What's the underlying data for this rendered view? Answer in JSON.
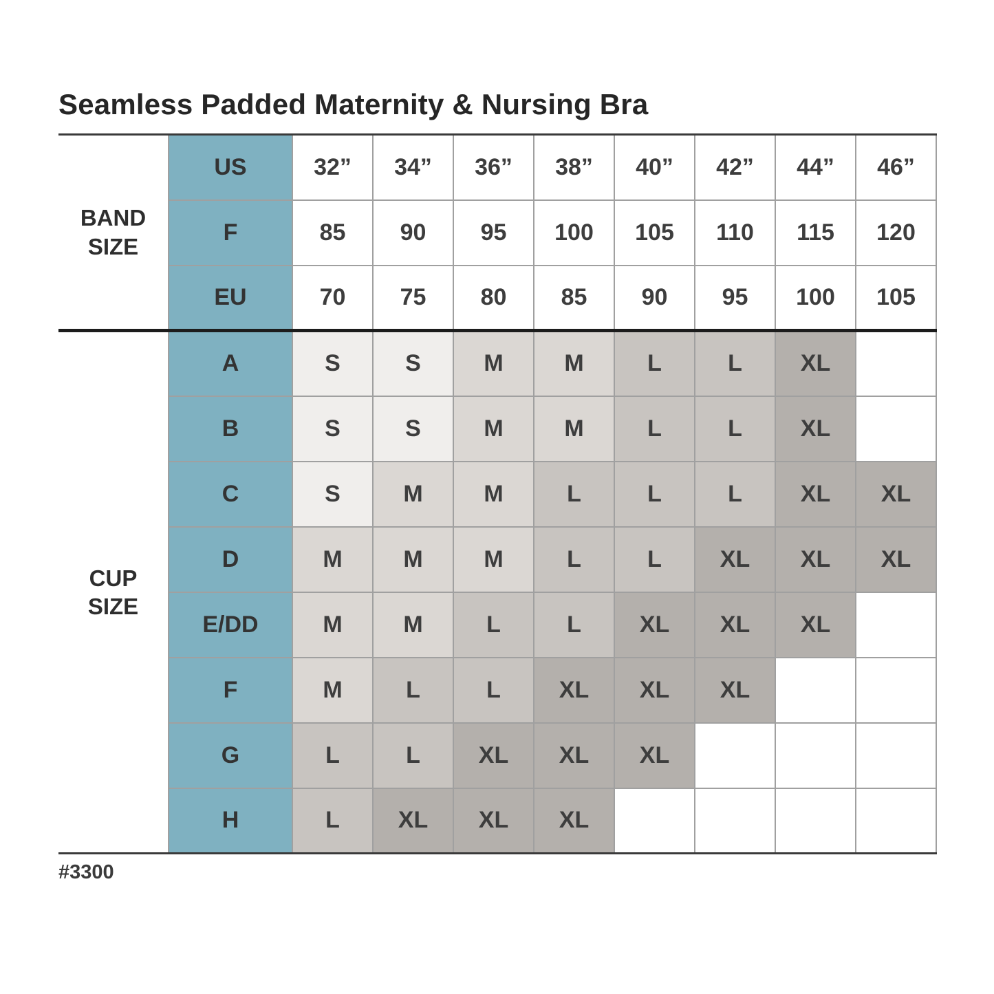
{
  "chart_data": {
    "type": "table",
    "title": "Seamless Padded Maternity & Nursing Bra",
    "footnote": "#3300",
    "band_section": {
      "label": "BAND\nSIZE",
      "rows": [
        {
          "header": "US",
          "values": [
            "32”",
            "34”",
            "36”",
            "38”",
            "40”",
            "42”",
            "44”",
            "46”"
          ]
        },
        {
          "header": "F",
          "values": [
            "85",
            "90",
            "95",
            "100",
            "105",
            "110",
            "115",
            "120"
          ]
        },
        {
          "header": "EU",
          "values": [
            "70",
            "75",
            "80",
            "85",
            "90",
            "95",
            "100",
            "105"
          ]
        }
      ]
    },
    "cup_section": {
      "label": "CUP\nSIZE",
      "rows": [
        {
          "header": "A",
          "values": [
            "S",
            "S",
            "M",
            "M",
            "L",
            "L",
            "XL",
            ""
          ]
        },
        {
          "header": "B",
          "values": [
            "S",
            "S",
            "M",
            "M",
            "L",
            "L",
            "XL",
            ""
          ]
        },
        {
          "header": "C",
          "values": [
            "S",
            "M",
            "M",
            "L",
            "L",
            "L",
            "XL",
            "XL"
          ]
        },
        {
          "header": "D",
          "values": [
            "M",
            "M",
            "M",
            "L",
            "L",
            "XL",
            "XL",
            "XL"
          ]
        },
        {
          "header": "E/DD",
          "values": [
            "M",
            "M",
            "L",
            "L",
            "XL",
            "XL",
            "XL",
            ""
          ]
        },
        {
          "header": "F",
          "values": [
            "M",
            "L",
            "L",
            "XL",
            "XL",
            "XL",
            "",
            ""
          ]
        },
        {
          "header": "G",
          "values": [
            "L",
            "L",
            "XL",
            "XL",
            "XL",
            "",
            "",
            ""
          ]
        },
        {
          "header": "H",
          "values": [
            "L",
            "XL",
            "XL",
            "XL",
            "",
            "",
            "",
            ""
          ]
        }
      ]
    }
  },
  "colors": {
    "header_column": "#7fb1c1",
    "size_S": "#f0eeec",
    "size_M": "#dbd7d3",
    "size_L": "#c8c4c0",
    "size_XL": "#b4b0ac",
    "grid_line": "#a0a0a0",
    "section_divider": "#1c1c1c"
  }
}
